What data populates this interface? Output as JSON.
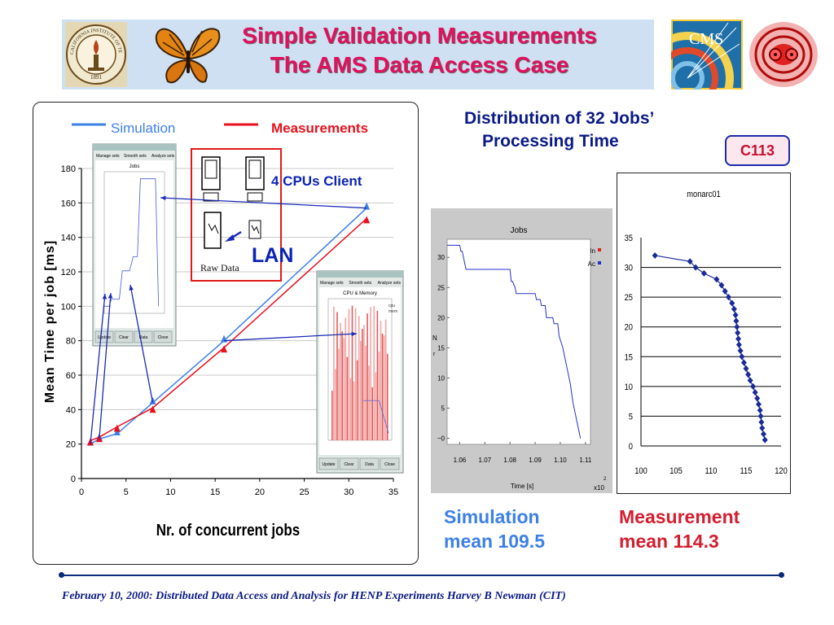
{
  "slide": {
    "title_line1": "Simple Validation Measurements",
    "title_line2": "The AMS Data Access Case",
    "accent_color": "#e0115e",
    "distribution_title_line1": "Distribution of 32 Jobs’",
    "distribution_title_line2": "Processing Time",
    "badge": "C113",
    "simulation_caption_line1": "Simulation",
    "simulation_caption_line2": "mean 109.5",
    "measurement_caption_line1": "Measurement",
    "measurement_caption_line2": "mean 114.3",
    "client_box_label": "4 CPUs Client",
    "lan_label": "LAN",
    "raw_data_label": "Raw Data",
    "footer_text": "February 10, 2000:  Distributed Data Access and Analysis for HENP Experiments      Harvey B Newman (CIT)"
  },
  "logos": {
    "seal_year": "1891",
    "seal_text": "CALIFORNIA INSTITUTE OF TECHNOLOGY",
    "cms_text": "CMS"
  },
  "chart_data": [
    {
      "type": "line",
      "xlabel": "Nr. of concurrent jobs",
      "ylabel": "Mean Time per job [ms]",
      "xlim": [
        0,
        35
      ],
      "ylim": [
        0,
        180
      ],
      "x_ticks": [
        "0",
        "5",
        "10",
        "15",
        "20",
        "25",
        "30",
        "35"
      ],
      "y_ticks": [
        "0",
        "20",
        "40",
        "60",
        "80",
        "100",
        "120",
        "140",
        "160",
        "180"
      ],
      "grid": true,
      "legend_position": "top",
      "series": [
        {
          "name": "Simulation",
          "color": "#3d80e6",
          "x": [
            1,
            2,
            4,
            8,
            16,
            32
          ],
          "y": [
            20,
            23,
            26,
            44,
            80,
            157
          ]
        },
        {
          "name": "Measurements",
          "color": "#e8101c",
          "x": [
            1,
            2,
            4,
            8,
            16,
            32
          ],
          "y": [
            22,
            24,
            30,
            41,
            76,
            151
          ]
        }
      ],
      "insets": [
        {
          "type": "line",
          "menu": [
            "Manage sets",
            "Smooth sets",
            "Analyze sets"
          ],
          "title": "Jobs",
          "buttons": [
            "Update",
            "Clear",
            "Data",
            "Close"
          ]
        },
        {
          "type": "bar",
          "menu": [
            "Manage sets",
            "Smooth sets",
            "Analyze sets"
          ],
          "title": "CPU & Memory",
          "legend": [
            "cpu",
            "mem"
          ],
          "buttons": [
            "Update",
            "Clear",
            "Data",
            "Close"
          ]
        }
      ]
    },
    {
      "type": "line",
      "title": "Jobs",
      "xlabel": "Time [s]",
      "x_multiplier": "x10",
      "x_multiplier_exp": "2",
      "ylabel": "N",
      "xlim": [
        1.055,
        1.112
      ],
      "ylim": [
        -1,
        33
      ],
      "x_ticks": [
        "1.06",
        "1.07",
        "1.08",
        "1.09",
        "1.10",
        "1.11"
      ],
      "y_ticks": [
        "~0",
        "5",
        "10",
        "15",
        "20",
        "25",
        "30"
      ],
      "legend": [
        "In",
        "Ac"
      ],
      "series": [
        {
          "name": "Ac",
          "color": "#2233cc",
          "x": [
            1.055,
            1.06,
            1.0605,
            1.061,
            1.062,
            1.0625,
            1.08,
            1.0805,
            1.081,
            1.082,
            1.0825,
            1.09,
            1.0905,
            1.092,
            1.0925,
            1.094,
            1.0945,
            1.097,
            1.0975,
            1.099,
            1.0995,
            1.101,
            1.102,
            1.103,
            1.104,
            1.105,
            1.106,
            1.107,
            1.108
          ],
          "y": [
            32,
            32,
            31,
            31,
            29,
            28,
            28,
            26,
            26,
            25,
            24,
            24,
            23,
            23,
            22,
            22,
            20,
            20,
            19,
            19,
            17,
            15,
            13,
            11,
            9,
            6,
            4,
            2,
            0
          ]
        }
      ]
    },
    {
      "type": "line",
      "title": "monarc01",
      "xlim": [
        100,
        120
      ],
      "ylim": [
        0,
        35
      ],
      "x_ticks": [
        "100",
        "105",
        "110",
        "115",
        "120"
      ],
      "y_ticks": [
        "0",
        "5",
        "10",
        "15",
        "20",
        "25",
        "30",
        "35"
      ],
      "grid": true,
      "series": [
        {
          "color": "#1a2a99",
          "x": [
            102,
            107,
            107.8,
            109,
            110.8,
            111.5,
            112,
            112.5,
            113,
            113.3,
            113.5,
            113.6,
            113.7,
            113.8,
            113.9,
            114,
            114.2,
            114.4,
            114.7,
            115,
            115.3,
            115.6,
            116,
            116.3,
            116.6,
            116.8,
            117,
            117.1,
            117.2,
            117.3,
            117.5,
            117.7
          ],
          "y": [
            32,
            31,
            30,
            29,
            28,
            27,
            26,
            25,
            24,
            23,
            22,
            21,
            20,
            19,
            18,
            17,
            16,
            15,
            14,
            13,
            12,
            11,
            10,
            9,
            8,
            7,
            6,
            5,
            4,
            3,
            2,
            1
          ]
        }
      ]
    }
  ]
}
